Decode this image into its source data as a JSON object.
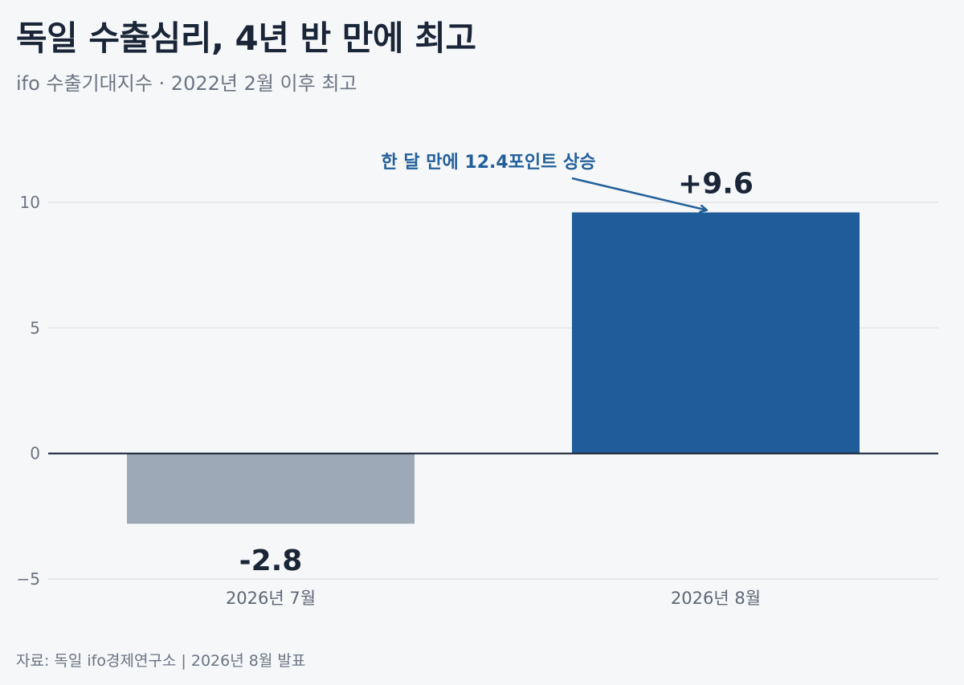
{
  "header": {
    "title": "독일 수출심리, 4년 반 만에 최고",
    "subtitle": "ifo 수출기대지수 · 2022년 2월 이후 최고"
  },
  "footer": {
    "source": "자료: 독일 ifo경제연구소 | 2026년 8월 발표"
  },
  "colors": {
    "positive_bar": "#1f5c99",
    "negative_bar": "#9ea9b8",
    "zero_line": "#1a2638",
    "grid": "#dcdfe5",
    "annotation": "#23609a"
  },
  "chart_data": {
    "type": "bar",
    "title": "독일 수출심리, 4년 반 만에 최고",
    "subtitle": "ifo 수출기대지수 · 2022년 2월 이후 최고",
    "xlabel": "",
    "ylabel": "",
    "categories": [
      "2026년 7월",
      "2026년 8월"
    ],
    "values": [
      -2.8,
      9.6
    ],
    "data_labels": [
      "-2.8",
      "+9.6"
    ],
    "ylim": [
      -5,
      10
    ],
    "yticks": [
      10,
      5,
      0,
      -5
    ],
    "ytick_labels": [
      "10",
      "5",
      "0",
      "−5"
    ],
    "grid": true,
    "legend": "none",
    "annotations": [
      {
        "text": "한 달 만에 12.4포인트 상승",
        "target_category": "2026년 8월"
      }
    ]
  }
}
